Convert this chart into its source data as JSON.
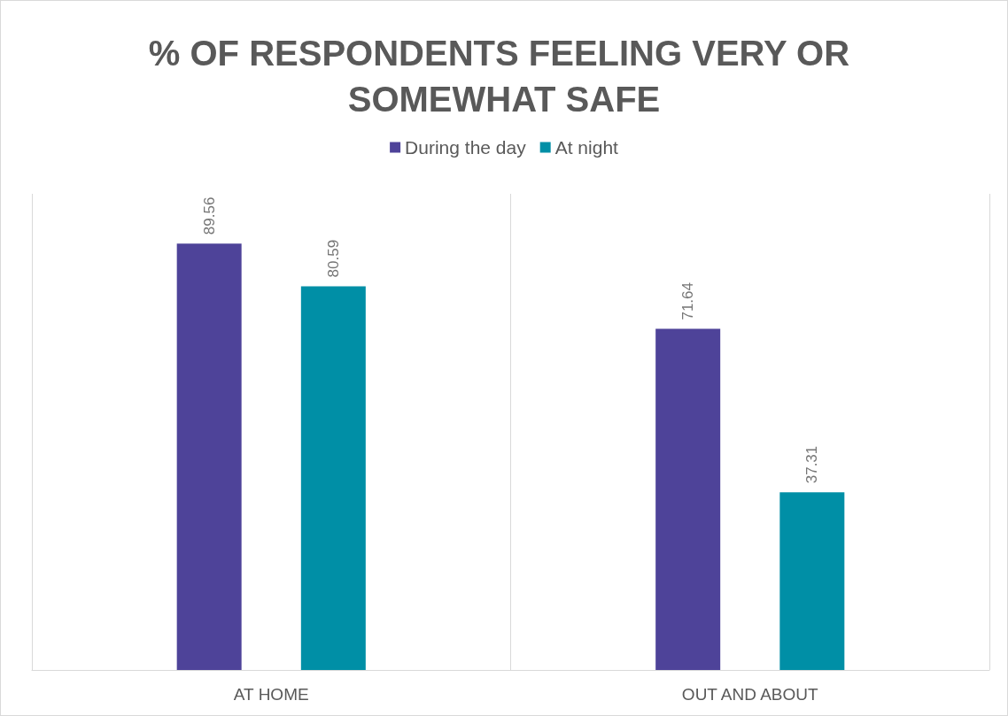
{
  "chart_data": {
    "type": "bar",
    "title": "% OF RESPONDENTS FEELING VERY OR SOMEWHAT SAFE",
    "categories": [
      "AT HOME",
      "OUT AND ABOUT"
    ],
    "series": [
      {
        "name": "During the day",
        "color": "#4e4399",
        "values": [
          89.56,
          71.64
        ]
      },
      {
        "name": "At night",
        "color": "#008fa6",
        "values": [
          80.59,
          37.31
        ]
      }
    ],
    "ylim": [
      0,
      100
    ],
    "tick_labels": "x",
    "data_labels": true,
    "grid": "x",
    "legend": "top"
  }
}
